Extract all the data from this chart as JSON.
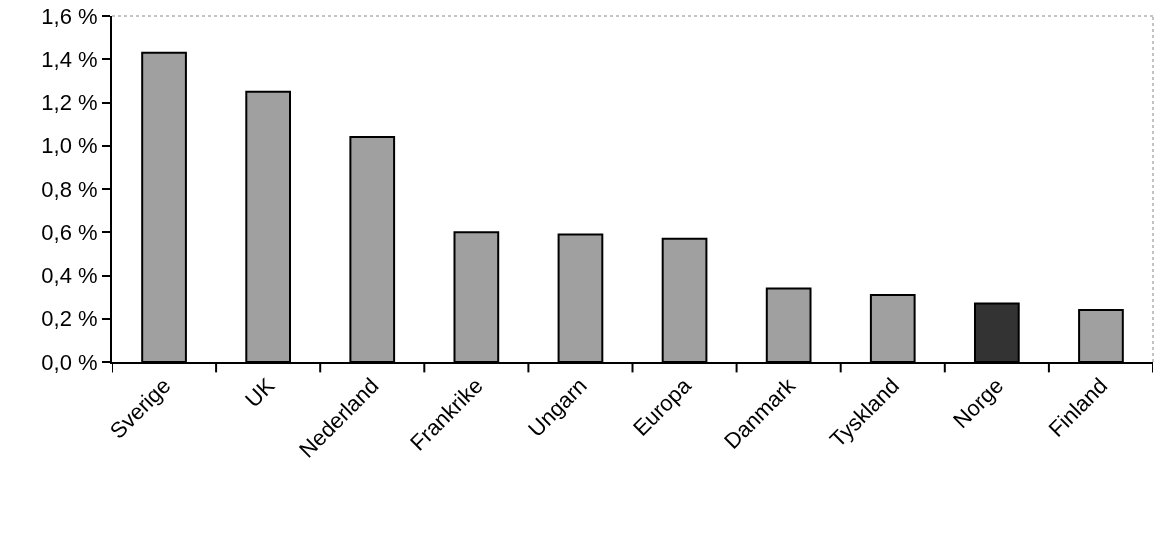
{
  "chart_data": {
    "type": "bar",
    "categories": [
      "Sverige",
      "UK",
      "Nederland",
      "Frankrike",
      "Ungarn",
      "Europa",
      "Danmark",
      "Tyskland",
      "Norge",
      "Finland"
    ],
    "values": [
      1.43,
      1.25,
      1.04,
      0.6,
      0.59,
      0.57,
      0.34,
      0.31,
      0.27,
      0.24
    ],
    "colors": [
      "#a0a0a0",
      "#a0a0a0",
      "#a0a0a0",
      "#a0a0a0",
      "#a0a0a0",
      "#a0a0a0",
      "#a0a0a0",
      "#a0a0a0",
      "#333333",
      "#a0a0a0"
    ],
    "ylim": [
      0,
      1.6
    ],
    "yticks": [
      {
        "value": 0,
        "label": "0,0 %"
      },
      {
        "value": 0.2,
        "label": "0,2 %"
      },
      {
        "value": 0.4,
        "label": "0,4 %"
      },
      {
        "value": 0.6,
        "label": "0,6 %"
      },
      {
        "value": 0.8,
        "label": "0,8 %"
      },
      {
        "value": 1.0,
        "label": "1,0 %"
      },
      {
        "value": 1.2,
        "label": "1,2 %"
      },
      {
        "value": 1.4,
        "label": "1,4 %"
      },
      {
        "value": 1.6,
        "label": "1,6 %"
      }
    ]
  }
}
